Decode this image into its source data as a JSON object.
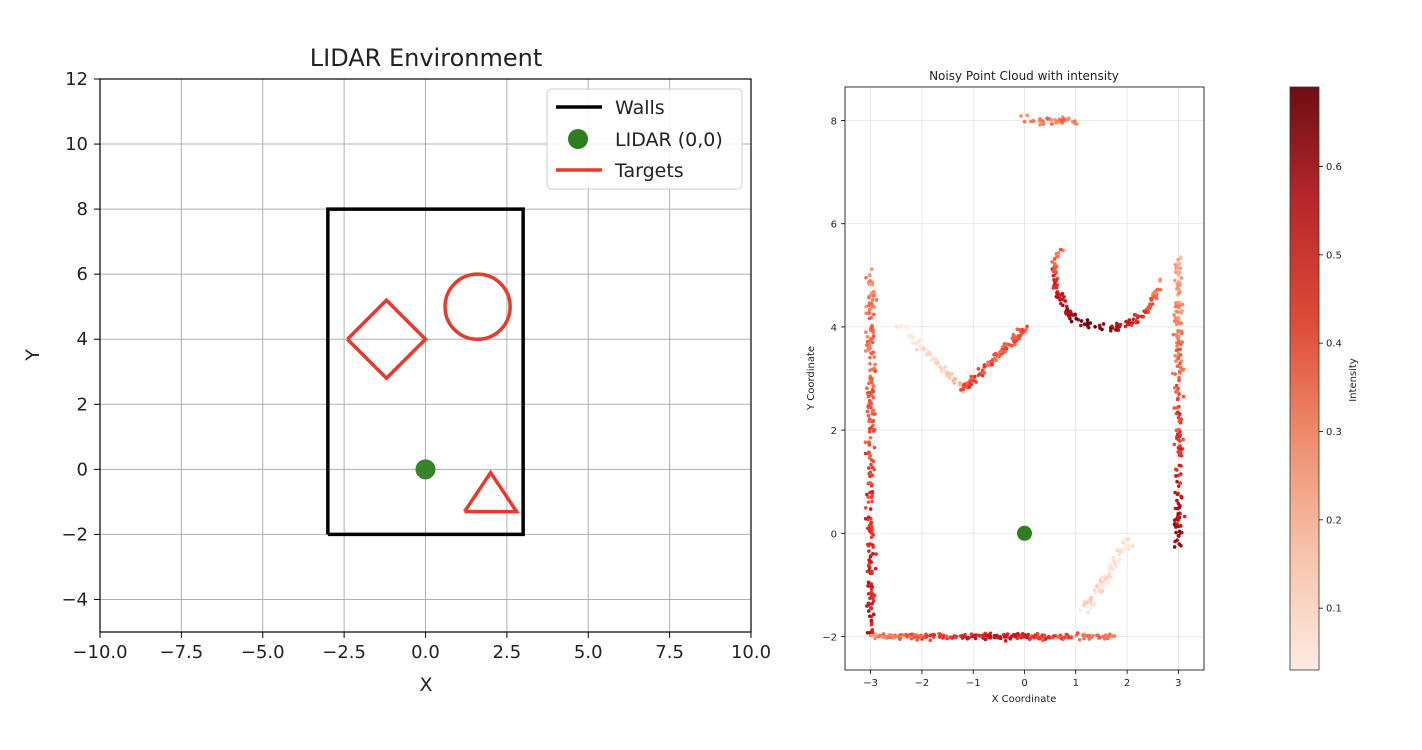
{
  "chart_data": [
    {
      "type": "line",
      "title": "LIDAR Environment",
      "xlabel": "X",
      "ylabel": "Y",
      "xlim": [
        -10,
        10
      ],
      "ylim": [
        -5,
        12
      ],
      "xticks": [
        -10,
        -7.5,
        -5,
        -2.5,
        0,
        2.5,
        5,
        7.5,
        10
      ],
      "xtick_labels": [
        "−10.0",
        "−7.5",
        "−5.0",
        "−2.5",
        "0.0",
        "2.5",
        "5.0",
        "7.5",
        "10.0"
      ],
      "yticks": [
        -4,
        -2,
        0,
        2,
        4,
        6,
        8,
        10,
        12
      ],
      "ytick_labels": [
        "−4",
        "−2",
        "0",
        "2",
        "4",
        "6",
        "8",
        "10",
        "12"
      ],
      "grid": true,
      "legend_position": "top-right",
      "legend": [
        {
          "label": "Walls",
          "kind": "line",
          "color": "#000000"
        },
        {
          "label": "LIDAR (0,0)",
          "kind": "marker",
          "color": "#2e7d1f"
        },
        {
          "label": "Targets",
          "kind": "line",
          "color": "#e53b2c"
        }
      ],
      "walls": {
        "x": [
          -3,
          3,
          3,
          -3,
          -3
        ],
        "y": [
          -2,
          -2,
          8,
          8,
          -2
        ]
      },
      "lidar": {
        "x": 0,
        "y": 0
      },
      "targets": [
        {
          "shape": "circle",
          "center": [
            1.6,
            5.0
          ],
          "radius": 1.0
        },
        {
          "shape": "diamond",
          "x": [
            -2.4,
            -1.2,
            0.0,
            -1.2,
            -2.4
          ],
          "y": [
            4.0,
            5.2,
            4.0,
            2.8,
            4.0
          ]
        },
        {
          "shape": "triangle",
          "x": [
            1.2,
            2.0,
            2.8,
            1.2
          ],
          "y": [
            -1.3,
            -0.1,
            -1.3,
            -1.3
          ]
        }
      ],
      "colors": {
        "walls": "#000000",
        "targets": "#e53b2c",
        "lidar": "#2e7d1f",
        "grid": "#b0b0b0"
      }
    },
    {
      "type": "scatter",
      "title": "Noisy Point Cloud with intensity",
      "xlabel": "X Coordinate",
      "ylabel": "Y Coordinate",
      "xlim": [
        -3.5,
        3.5
      ],
      "ylim": [
        -2.65,
        8.65
      ],
      "xticks": [
        -3,
        -2,
        -1,
        0,
        1,
        2,
        3
      ],
      "xtick_labels": [
        "−3",
        "−2",
        "−1",
        "0",
        "1",
        "2",
        "3"
      ],
      "yticks": [
        -2,
        0,
        2,
        4,
        6,
        8
      ],
      "ytick_labels": [
        "−2",
        "0",
        "2",
        "4",
        "6",
        "8"
      ],
      "grid": true,
      "colormap": "Reds",
      "colorbar": {
        "label": "Intensity",
        "range": [
          0.03,
          0.69
        ],
        "ticks": [
          0.1,
          0.2,
          0.3,
          0.4,
          0.5,
          0.6
        ],
        "tick_labels": [
          "0.1",
          "0.2",
          "0.3",
          "0.4",
          "0.5",
          "0.6"
        ]
      },
      "lidar": {
        "x": 0,
        "y": 0
      },
      "point_clusters": [
        {
          "name": "left-wall",
          "from": [
            -3.0,
            -2.0
          ],
          "to": [
            -3.0,
            5.1
          ],
          "noise": 0.04,
          "count": 230,
          "intensity": [
            0.55,
            0.3
          ]
        },
        {
          "name": "right-wall",
          "from": [
            3.0,
            -0.25
          ],
          "to": [
            3.0,
            5.4
          ],
          "noise": 0.04,
          "count": 190,
          "intensity": [
            0.6,
            0.22
          ]
        },
        {
          "name": "bottom-wall",
          "from": [
            -3.0,
            -2.0
          ],
          "to": [
            1.8,
            -2.0
          ],
          "noise": 0.03,
          "count": 230,
          "intensity": [
            0.3,
            0.55,
            0.3
          ]
        },
        {
          "name": "top-wall",
          "from": [
            0.0,
            8.0
          ],
          "to": [
            1.0,
            8.0
          ],
          "noise": 0.04,
          "count": 40,
          "intensity": [
            0.33,
            0.33
          ]
        },
        {
          "name": "diamond-left-edge",
          "from": [
            -2.4,
            4.0
          ],
          "to": [
            -1.2,
            2.8
          ],
          "noise": 0.04,
          "count": 70,
          "intensity": [
            0.06,
            0.2
          ]
        },
        {
          "name": "diamond-right-edge",
          "from": [
            -1.2,
            2.8
          ],
          "to": [
            0.05,
            4.0
          ],
          "noise": 0.04,
          "count": 110,
          "intensity": [
            0.42,
            0.38
          ]
        },
        {
          "name": "triangle-edge",
          "from": [
            1.2,
            -1.45
          ],
          "to": [
            2.0,
            -0.15
          ],
          "noise": 0.06,
          "count": 90,
          "intensity": [
            0.12,
            0.08
          ]
        },
        {
          "name": "circle-arc",
          "center": [
            1.6,
            5.0
          ],
          "radius": 1.02,
          "angle_range_deg": [
            150,
            355
          ],
          "noise": 0.04,
          "count": 150,
          "intensity": [
            0.35,
            0.69,
            0.3
          ]
        }
      ]
    }
  ]
}
